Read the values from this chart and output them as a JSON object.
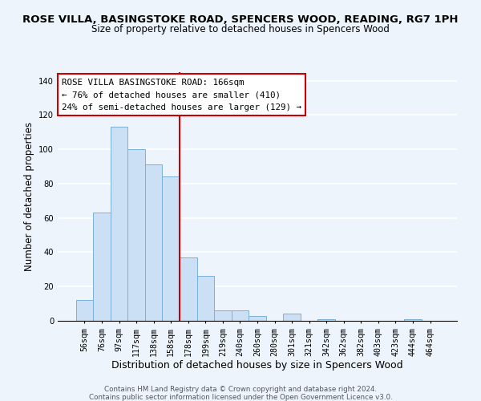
{
  "title": "ROSE VILLA, BASINGSTOKE ROAD, SPENCERS WOOD, READING, RG7 1PH",
  "subtitle": "Size of property relative to detached houses in Spencers Wood",
  "xlabel": "Distribution of detached houses by size in Spencers Wood",
  "ylabel": "Number of detached properties",
  "footer1": "Contains HM Land Registry data © Crown copyright and database right 2024.",
  "footer2": "Contains public sector information licensed under the Open Government Licence v3.0.",
  "bar_labels": [
    "56sqm",
    "76sqm",
    "97sqm",
    "117sqm",
    "138sqm",
    "158sqm",
    "178sqm",
    "199sqm",
    "219sqm",
    "240sqm",
    "260sqm",
    "280sqm",
    "301sqm",
    "321sqm",
    "342sqm",
    "362sqm",
    "382sqm",
    "403sqm",
    "423sqm",
    "444sqm",
    "464sqm"
  ],
  "bar_values": [
    12,
    63,
    113,
    100,
    91,
    84,
    37,
    26,
    6,
    6,
    3,
    0,
    4,
    0,
    1,
    0,
    0,
    0,
    0,
    1,
    0
  ],
  "bar_color": "#cce0f5",
  "bar_edge_color": "#7ab0d8",
  "vline_x": 5.5,
  "vline_color": "#cc0000",
  "annotation_title": "ROSE VILLA BASINGSTOKE ROAD: 166sqm",
  "annotation_line1": "← 76% of detached houses are smaller (410)",
  "annotation_line2": "24% of semi-detached houses are larger (129) →",
  "annotation_box_color": "#ffffff",
  "annotation_box_edge": "#cc0000",
  "ylim": [
    0,
    145
  ],
  "yticks": [
    0,
    20,
    40,
    60,
    80,
    100,
    120,
    140
  ],
  "background_color": "#eef4fb",
  "grid_color": "#ffffff",
  "footer_color": "#555555",
  "title_fontsize": 9.5,
  "subtitle_fontsize": 8.5,
  "ylabel_fontsize": 8.5,
  "xlabel_fontsize": 9.0,
  "tick_fontsize": 7.2,
  "ann_fontsize": 7.8,
  "footer_fontsize": 6.3
}
